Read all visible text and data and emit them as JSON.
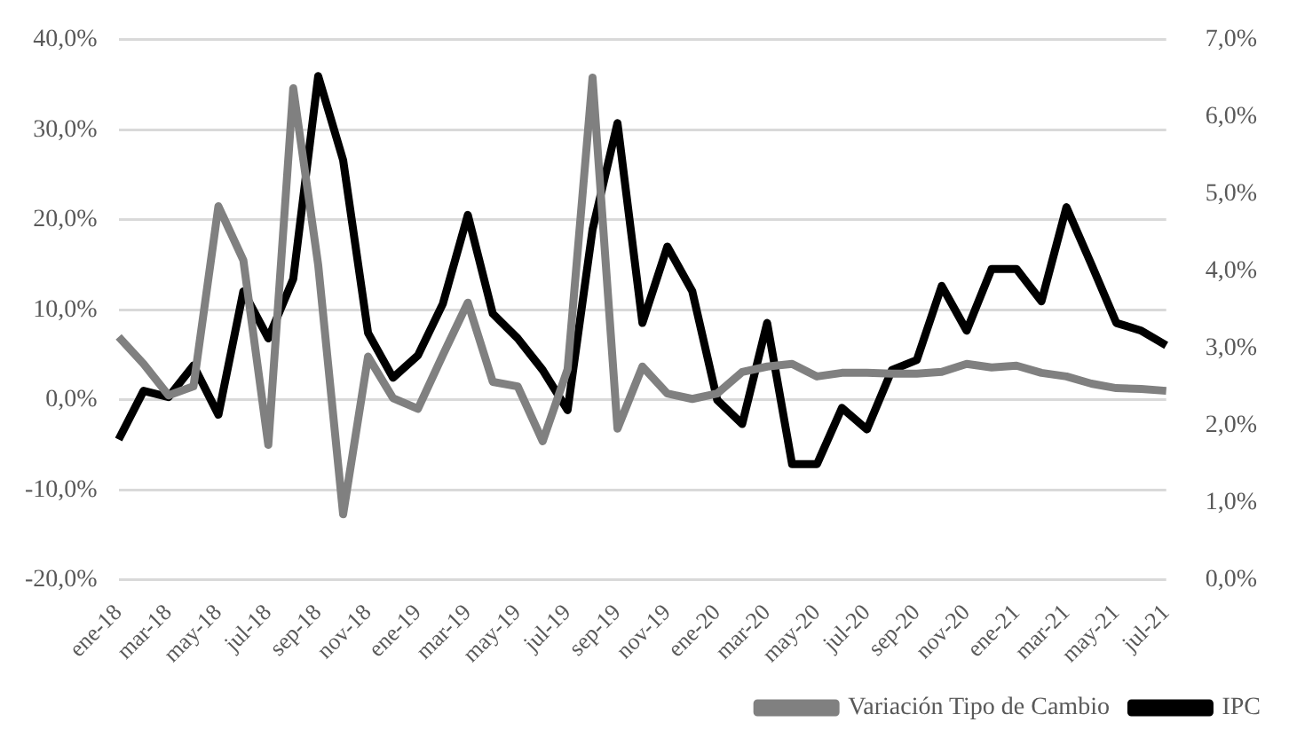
{
  "chart_data": {
    "type": "line",
    "categories": [
      "ene-18",
      null,
      "mar-18",
      null,
      "may-18",
      null,
      "jul-18",
      null,
      "sep-18",
      null,
      "nov-18",
      null,
      "ene-19",
      null,
      "mar-19",
      null,
      "may-19",
      null,
      "jul-19",
      null,
      "sep-19",
      null,
      "nov-19",
      null,
      "ene-20",
      null,
      "mar-20",
      null,
      "may-20",
      null,
      "jul-20",
      null,
      "sep-20",
      null,
      "nov-20",
      null,
      "ene-21",
      null,
      "mar-21",
      null,
      "may-21",
      null,
      "jul-21"
    ],
    "series": [
      {
        "name": "Variación Tipo de Cambio",
        "color": "#808080",
        "values": [
          7.0,
          4.0,
          0.5,
          1.5,
          21.5,
          15.5,
          -5.0,
          34.6,
          15.0,
          -12.7,
          4.8,
          0.2,
          -1.0,
          5.0,
          10.8,
          2.0,
          1.5,
          -4.6,
          3.4,
          35.8,
          -3.2,
          3.7,
          0.7,
          0.1,
          0.7,
          3.1,
          3.7,
          4.0,
          2.6,
          3.0,
          3.0,
          2.9,
          2.9,
          3.1,
          4.0,
          3.6,
          3.8,
          3.0,
          2.6,
          1.8,
          1.3,
          1.2,
          1.0
        ]
      },
      {
        "name": "IPC",
        "color": "#000000",
        "axis": "y2",
        "values": [
          1.82,
          2.45,
          2.37,
          2.78,
          2.14,
          3.74,
          3.13,
          3.9,
          6.53,
          5.44,
          3.2,
          2.62,
          2.91,
          3.58,
          4.73,
          3.45,
          3.13,
          2.72,
          2.2,
          4.54,
          5.92,
          3.33,
          4.32,
          3.74,
          2.33,
          2.02,
          3.33,
          1.5,
          1.5,
          2.23,
          1.95,
          2.72,
          2.85,
          3.81,
          3.23,
          4.03,
          4.03,
          3.61,
          4.83,
          4.09,
          3.33,
          3.23,
          3.04
        ]
      }
    ],
    "ylim": [
      -20,
      40
    ],
    "yticks": [
      {
        "value": -20,
        "label": "-20,0%"
      },
      {
        "value": -10,
        "label": "-10,0%"
      },
      {
        "value": 0,
        "label": "0,0%"
      },
      {
        "value": 10,
        "label": "10,0%"
      },
      {
        "value": 20,
        "label": "20,0%"
      },
      {
        "value": 30,
        "label": "30,0%"
      },
      {
        "value": 40,
        "label": "40,0%"
      }
    ],
    "y2lim": [
      0,
      7
    ],
    "y2ticks": [
      {
        "value": 0,
        "label": "0,0%"
      },
      {
        "value": 1,
        "label": "1,0%"
      },
      {
        "value": 2,
        "label": "2,0%"
      },
      {
        "value": 3,
        "label": "3,0%"
      },
      {
        "value": 4,
        "label": "4,0%"
      },
      {
        "value": 5,
        "label": "5,0%"
      },
      {
        "value": 6,
        "label": "6,0%"
      },
      {
        "value": 7,
        "label": "7,0%"
      }
    ],
    "grid": "y",
    "legend": "bottom right",
    "marker": "none",
    "line_style": "solid"
  }
}
